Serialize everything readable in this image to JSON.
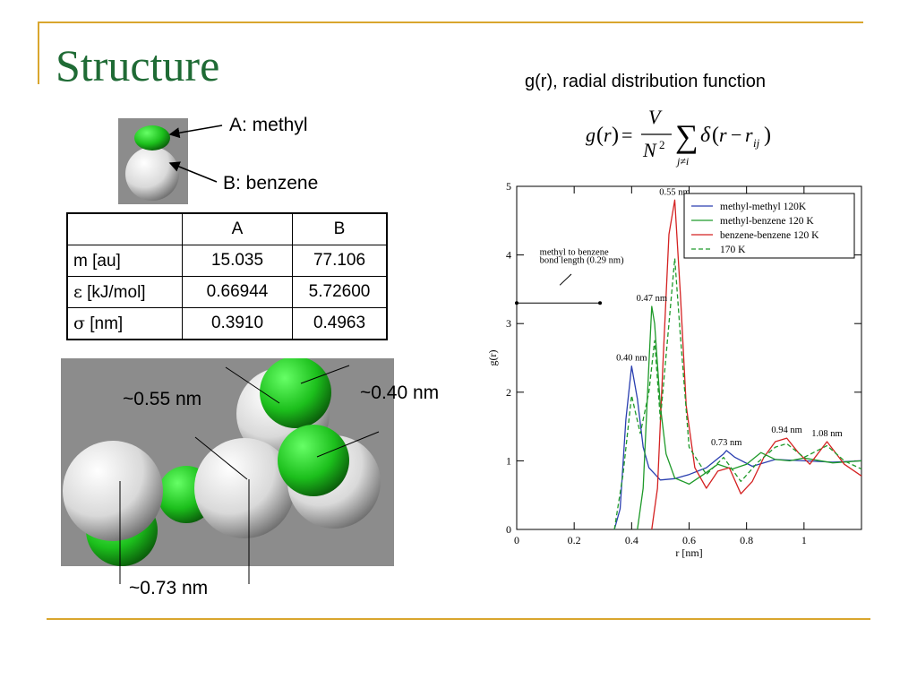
{
  "slide": {
    "title": "Structure",
    "molecule_labels": {
      "methyl": "A: methyl",
      "benzene": "B: benzene"
    },
    "table": {
      "headers": [
        "",
        "A",
        "B"
      ],
      "rows": [
        {
          "symbol": "",
          "unit": "m [au]",
          "a": "15.035",
          "b": "77.106"
        },
        {
          "symbol": "ε",
          "unit": " [kJ/mol]",
          "a": "0.66944",
          "b": "5.72600"
        },
        {
          "symbol": "σ",
          "unit": " [nm]",
          "a": "0.3910",
          "b": "0.4963"
        }
      ]
    },
    "distances": {
      "d055": "~0.55 nm",
      "d040": "~0.40 nm",
      "d073": "~0.73 nm"
    },
    "formula_title": "g(r), radial distribution function"
  },
  "colors": {
    "accent": "#d9a62e",
    "title": "#1f6b35",
    "mm": "#2a3fb0",
    "mb": "#1f9a2a",
    "bb": "#d42222"
  },
  "chart_data": {
    "type": "line",
    "xlabel": "r [nm]",
    "ylabel": "g(r)",
    "xlim": [
      0,
      1.2
    ],
    "ylim": [
      0,
      5
    ],
    "xticks": [
      "0",
      "0.2",
      "0.4",
      "0.6",
      "0.8",
      "1"
    ],
    "yticks": [
      "0",
      "1",
      "2",
      "3",
      "4",
      "5"
    ],
    "series": [
      {
        "name": "methyl-methyl 120K",
        "color": "#2a3fb0",
        "dash": false,
        "x": [
          0.34,
          0.36,
          0.38,
          0.4,
          0.42,
          0.44,
          0.46,
          0.5,
          0.55,
          0.6,
          0.66,
          0.72,
          0.73,
          0.76,
          0.82,
          0.9,
          1.0,
          1.1,
          1.2
        ],
        "y": [
          0,
          0.3,
          1.6,
          2.38,
          1.9,
          1.2,
          0.9,
          0.72,
          0.74,
          0.8,
          0.9,
          1.1,
          1.15,
          1.05,
          0.92,
          1.02,
          1.0,
          0.98,
          1.0
        ]
      },
      {
        "name": "methyl-benzene 120 K",
        "color": "#1f9a2a",
        "dash": false,
        "x": [
          0.42,
          0.44,
          0.46,
          0.47,
          0.48,
          0.5,
          0.52,
          0.55,
          0.6,
          0.65,
          0.7,
          0.75,
          0.8,
          0.85,
          0.9,
          0.95,
          1.0,
          1.1,
          1.2
        ],
        "y": [
          0,
          0.6,
          2.4,
          3.25,
          3.0,
          1.8,
          1.1,
          0.75,
          0.66,
          0.8,
          0.95,
          0.88,
          0.95,
          1.12,
          1.02,
          1.0,
          1.04,
          0.97,
          1.0
        ]
      },
      {
        "name": "benzene-benzene 120 K",
        "color": "#d42222",
        "dash": false,
        "x": [
          0.47,
          0.49,
          0.51,
          0.53,
          0.55,
          0.57,
          0.59,
          0.62,
          0.66,
          0.7,
          0.74,
          0.78,
          0.82,
          0.86,
          0.9,
          0.94,
          0.98,
          1.02,
          1.08,
          1.14,
          1.2
        ],
        "y": [
          0,
          0.6,
          2.5,
          4.3,
          4.8,
          3.4,
          1.8,
          0.9,
          0.6,
          0.85,
          0.9,
          0.52,
          0.7,
          1.05,
          1.28,
          1.33,
          1.12,
          0.95,
          1.28,
          0.95,
          0.78
        ]
      },
      {
        "name": "170 K",
        "color": "#1f9a2a",
        "dash": true,
        "x": [
          0.34,
          0.37,
          0.4,
          0.43,
          0.46,
          0.48,
          0.5,
          0.53,
          0.55,
          0.57,
          0.6,
          0.66,
          0.72,
          0.78,
          0.84,
          0.9,
          0.94,
          1.0,
          1.08,
          1.14,
          1.2
        ],
        "y": [
          0,
          0.8,
          1.95,
          1.4,
          2.0,
          2.75,
          1.6,
          3.0,
          3.95,
          2.8,
          1.2,
          0.8,
          1.05,
          0.7,
          0.98,
          1.2,
          1.25,
          1.05,
          1.22,
          1.0,
          0.88
        ]
      }
    ],
    "annotations": [
      {
        "text": "0.55 nm",
        "x": 0.55,
        "y": 4.8
      },
      {
        "text": "0.47 nm",
        "x": 0.47,
        "y": 3.25
      },
      {
        "text": "0.40 nm",
        "x": 0.4,
        "y": 2.38
      },
      {
        "text": "0.73 nm",
        "x": 0.73,
        "y": 1.15
      },
      {
        "text": "0.94 nm",
        "x": 0.94,
        "y": 1.33
      },
      {
        "text": "1.08 nm",
        "x": 1.08,
        "y": 1.28
      }
    ],
    "bond_note": [
      "methyl to benzene",
      "bond length (0.29 nm)"
    ],
    "bond_segment": {
      "x": [
        0,
        0.29
      ],
      "y": 3.3
    },
    "legend_position": "top-right"
  }
}
